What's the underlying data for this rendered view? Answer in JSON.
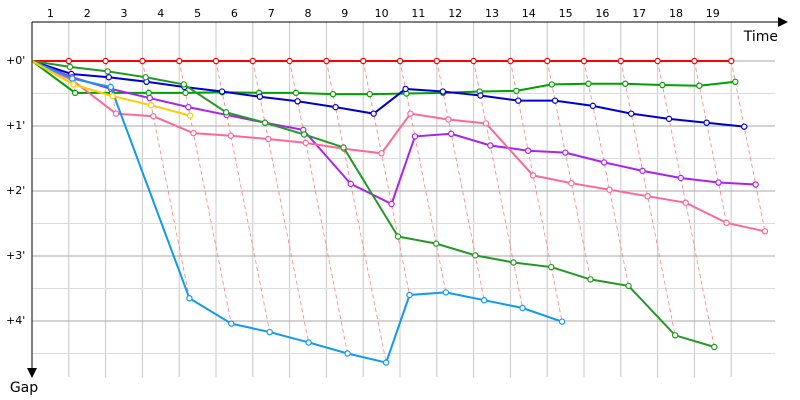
{
  "chart_data": {
    "type": "line",
    "xlabel": "Time",
    "ylabel": "Gap",
    "x_ticks": [
      "1",
      "2",
      "3",
      "4",
      "5",
      "6",
      "7",
      "8",
      "9",
      "10",
      "11",
      "12",
      "13",
      "14",
      "15",
      "16",
      "17",
      "18",
      "19"
    ],
    "y_ticks": [
      {
        "value": 0,
        "label": "+0'"
      },
      {
        "value": 1,
        "label": "+1'"
      },
      {
        "value": 2,
        "label": "+2'"
      },
      {
        "value": 3,
        "label": "+3'"
      },
      {
        "value": 4,
        "label": "+4'"
      }
    ],
    "grid": true,
    "xlim": [
      0,
      20.65
    ],
    "ylim": [
      0,
      4.85
    ],
    "lap_shift": 0.35,
    "series": [
      {
        "color": "#ff0000",
        "values": [
          0,
          0,
          0,
          0,
          0,
          0,
          0,
          0,
          0,
          0,
          0,
          0,
          0,
          0,
          0,
          0,
          0,
          0,
          0,
          0
        ]
      },
      {
        "color": "#00a000",
        "values": [
          0,
          0.49,
          0.49,
          0.49,
          0.49,
          0.48,
          0.49,
          0.49,
          0.51,
          0.51,
          0.5,
          0.49,
          0.47,
          0.46,
          0.36,
          0.35,
          0.35,
          0.37,
          0.38,
          0.32
        ]
      },
      {
        "color": "#0000cc",
        "values": [
          0,
          0.2,
          0.25,
          0.32,
          0.4,
          0.47,
          0.55,
          0.62,
          0.71,
          0.81,
          0.43,
          0.47,
          0.53,
          0.61,
          0.61,
          0.69,
          0.81,
          0.89,
          0.95,
          1.01
        ]
      },
      {
        "color": "#aa22ee",
        "values": [
          0,
          0.25,
          0.43,
          0.57,
          0.71,
          0.83,
          0.95,
          1.06,
          1.89,
          2.2,
          1.16,
          1.12,
          1.3,
          1.38,
          1.41,
          1.56,
          1.69,
          1.8,
          1.87,
          1.9
        ]
      },
      {
        "color": "#ff6699",
        "values": [
          0,
          0.3,
          0.81,
          0.85,
          1.11,
          1.15,
          1.2,
          1.26,
          1.35,
          1.42,
          0.81,
          0.9,
          0.96,
          1.76,
          1.88,
          1.98,
          2.08,
          2.18,
          2.49,
          2.62
        ]
      },
      {
        "color": "#229922",
        "values": [
          0,
          0.09,
          0.16,
          0.25,
          0.36,
          0.79,
          0.95,
          1.13,
          1.33,
          2.7,
          2.81,
          2.99,
          3.1,
          3.17,
          3.36,
          3.46,
          4.22,
          4.4
        ]
      },
      {
        "color": "#1199ee",
        "values": [
          0,
          0.27,
          0.4,
          3.65,
          4.04,
          4.17,
          4.33,
          4.5,
          4.64,
          3.6,
          3.56,
          3.68,
          3.8,
          4.01
        ]
      },
      {
        "color": "#ffcc00",
        "values": [
          0,
          0.36,
          0.54,
          0.68,
          0.84
        ]
      }
    ]
  }
}
